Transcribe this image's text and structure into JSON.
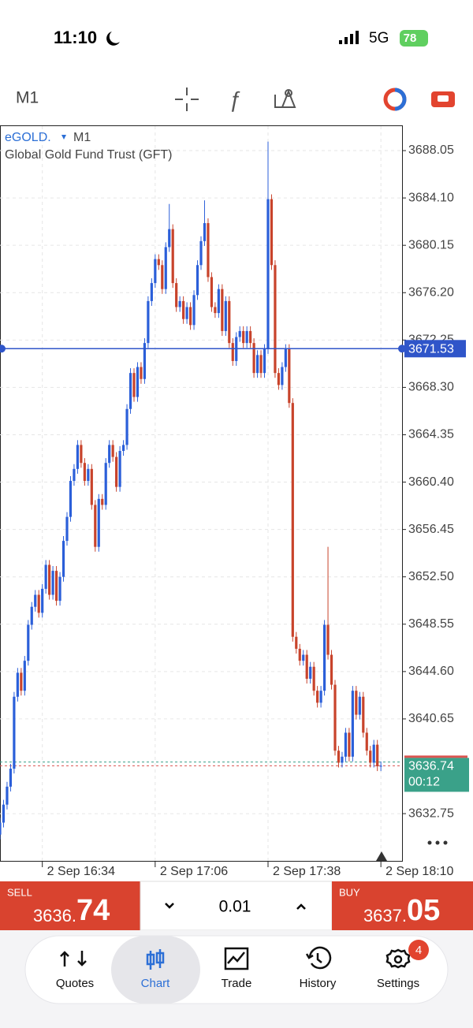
{
  "status_bar": {
    "time": "11:10",
    "network": "5G",
    "battery": "78"
  },
  "toolbar": {
    "timeframe": "M1"
  },
  "chart_data": {
    "type": "candlestick",
    "symbol": "eGOLD.",
    "timeframe": "M1",
    "subtitle": "Global Gold Fund Trust (GFT)",
    "open": [
      3631.0,
      3632.0,
      3633.5,
      3635.0,
      3636.5,
      3642.5,
      3644.5,
      3643.0,
      3645.5,
      3648.5,
      3650.0,
      3651.0,
      3649.5,
      3651.5,
      3653.5,
      3651.0,
      3653.0,
      3650.5,
      3652.5,
      3655.5,
      3657.5,
      3660.5,
      3661.5,
      3663.5,
      3662.0,
      3660.5,
      3661.5,
      3658.5,
      3655.0,
      3659.0,
      3658.5,
      3662.0,
      3663.5,
      3662.5,
      3660.0,
      3663.0,
      3663.5,
      3666.5,
      3669.5,
      3667.5,
      3670.0,
      3669.0,
      3672.0,
      3675.5,
      3677.0,
      3679.0,
      3678.5,
      3676.5,
      3680.0,
      3681.5,
      3677.0,
      3675.0,
      3675.5,
      3674.0,
      3675.0,
      3673.5,
      3676.0,
      3678.5,
      3680.5,
      3682.0,
      3677.5,
      3675.0,
      3674.5,
      3676.5,
      3673.0,
      3675.5,
      3672.0,
      3670.5,
      3672.5,
      3673.0,
      3672.0,
      3673.0,
      3672.0,
      3669.5,
      3671.0,
      3669.5,
      3671.5,
      3684.0,
      3678.5,
      3669.5,
      3668.5,
      3670.0,
      3671.5,
      3667.0,
      3647.5,
      3646.5,
      3645.5,
      3646.0,
      3644.0,
      3645.0,
      3643.0,
      3642.0,
      3643.0,
      3648.5,
      3646.0,
      3643.5,
      3638.0,
      3637.0,
      3637.5,
      3639.5,
      3637.5,
      3643.0,
      3641.0,
      3642.5,
      3639.5,
      3638.0,
      3637.0,
      3638.5,
      3636.7
    ],
    "high": [
      3632.4,
      3633.9,
      3635.4,
      3636.9,
      3642.9,
      3644.9,
      3644.9,
      3645.9,
      3648.9,
      3650.4,
      3651.4,
      3651.4,
      3651.9,
      3653.9,
      3653.9,
      3653.4,
      3653.4,
      3652.9,
      3655.9,
      3657.9,
      3660.9,
      3661.9,
      3663.9,
      3663.9,
      3662.4,
      3661.9,
      3661.9,
      3658.9,
      3659.4,
      3659.4,
      3662.4,
      3663.9,
      3663.9,
      3662.9,
      3663.4,
      3663.9,
      3666.9,
      3669.9,
      3669.9,
      3670.4,
      3670.4,
      3672.4,
      3675.9,
      3677.4,
      3679.4,
      3679.4,
      3678.9,
      3680.4,
      3683.6,
      3681.9,
      3677.4,
      3675.9,
      3675.9,
      3675.4,
      3675.4,
      3676.4,
      3678.9,
      3680.9,
      3683.9,
      3682.4,
      3677.9,
      3675.4,
      3676.9,
      3676.9,
      3675.9,
      3675.9,
      3672.4,
      3672.9,
      3673.4,
      3673.4,
      3673.4,
      3673.4,
      3672.4,
      3671.4,
      3671.4,
      3671.9,
      3688.8,
      3684.4,
      3678.9,
      3669.9,
      3670.4,
      3671.9,
      3671.9,
      3667.4,
      3647.9,
      3646.9,
      3646.4,
      3646.4,
      3645.4,
      3645.4,
      3643.4,
      3643.4,
      3648.9,
      3655.0,
      3646.4,
      3643.9,
      3638.4,
      3637.9,
      3639.9,
      3639.9,
      3643.4,
      3643.4,
      3642.9,
      3642.9,
      3639.9,
      3638.4,
      3638.9,
      3638.9,
      3637.1
    ],
    "low": [
      3630.6,
      3631.6,
      3633.1,
      3634.6,
      3636.1,
      3642.1,
      3642.6,
      3642.6,
      3645.1,
      3648.1,
      3649.6,
      3649.1,
      3649.1,
      3651.1,
      3650.6,
      3650.6,
      3650.1,
      3650.1,
      3652.1,
      3655.1,
      3657.1,
      3660.1,
      3661.1,
      3661.6,
      3660.1,
      3660.1,
      3658.1,
      3654.6,
      3654.6,
      3658.1,
      3658.1,
      3661.6,
      3662.1,
      3659.6,
      3659.6,
      3662.6,
      3663.1,
      3666.1,
      3667.1,
      3667.1,
      3668.6,
      3668.6,
      3671.6,
      3675.1,
      3676.6,
      3678.1,
      3676.1,
      3676.1,
      3679.6,
      3676.6,
      3674.6,
      3674.6,
      3673.6,
      3673.6,
      3673.1,
      3673.1,
      3675.6,
      3678.1,
      3680.1,
      3677.1,
      3674.6,
      3674.1,
      3674.1,
      3672.6,
      3672.6,
      3671.6,
      3670.1,
      3670.1,
      3672.1,
      3671.6,
      3671.6,
      3671.6,
      3669.1,
      3669.1,
      3669.1,
      3669.1,
      3671.1,
      3678.1,
      3669.1,
      3668.1,
      3668.1,
      3669.6,
      3666.6,
      3647.1,
      3646.1,
      3645.1,
      3645.1,
      3643.6,
      3643.6,
      3642.6,
      3641.6,
      3641.6,
      3642.6,
      3645.6,
      3643.1,
      3637.6,
      3636.6,
      3636.6,
      3637.1,
      3637.1,
      3637.1,
      3640.6,
      3640.6,
      3639.1,
      3637.6,
      3636.6,
      3636.6,
      3636.3,
      3636.3
    ],
    "close": [
      3632.0,
      3633.5,
      3635.0,
      3636.5,
      3642.5,
      3644.5,
      3643.0,
      3645.5,
      3648.5,
      3650.0,
      3651.0,
      3649.5,
      3651.5,
      3653.5,
      3651.0,
      3653.0,
      3650.5,
      3652.5,
      3655.5,
      3657.5,
      3660.5,
      3661.5,
      3663.5,
      3662.0,
      3660.5,
      3661.5,
      3658.5,
      3655.0,
      3659.0,
      3658.5,
      3662.0,
      3663.5,
      3662.5,
      3660.0,
      3663.0,
      3663.5,
      3666.5,
      3669.5,
      3667.5,
      3670.0,
      3669.0,
      3672.0,
      3675.5,
      3677.0,
      3679.0,
      3678.5,
      3676.5,
      3680.0,
      3681.5,
      3677.0,
      3675.0,
      3675.5,
      3674.0,
      3675.0,
      3673.5,
      3676.0,
      3678.5,
      3680.5,
      3682.0,
      3677.5,
      3675.0,
      3674.5,
      3676.5,
      3673.0,
      3675.5,
      3672.0,
      3670.5,
      3672.5,
      3673.0,
      3672.0,
      3673.0,
      3672.0,
      3669.5,
      3671.0,
      3669.5,
      3671.5,
      3684.0,
      3678.5,
      3669.5,
      3668.5,
      3670.0,
      3671.5,
      3667.0,
      3647.5,
      3646.5,
      3645.5,
      3646.0,
      3644.0,
      3645.0,
      3643.0,
      3642.0,
      3643.0,
      3648.5,
      3646.0,
      3643.5,
      3638.0,
      3637.0,
      3637.5,
      3639.5,
      3637.5,
      3643.0,
      3641.0,
      3642.5,
      3639.5,
      3638.0,
      3637.0,
      3638.5,
      3636.7,
      3636.74
    ],
    "up_color": "#2b5fd9",
    "down_color": "#c8432b",
    "xlim": [
      0,
      114
    ],
    "xticks": [
      {
        "value": 12,
        "label": "2 Sep 16:34"
      },
      {
        "value": 44,
        "label": "2 Sep 17:06"
      },
      {
        "value": 76,
        "label": "2 Sep 17:38"
      },
      {
        "value": 108,
        "label": "2 Sep 18:10"
      }
    ],
    "ylim": [
      3628.81,
      3690.09
    ],
    "yticks": [
      3688.05,
      {
        "value": 3684.1,
        "label": "3684.10"
      },
      3680.15,
      {
        "value": 3676.2,
        "label": "3676.20"
      },
      3672.25,
      {
        "value": 3668.3,
        "label": "3668.30"
      },
      3664.35,
      {
        "value": 3660.4,
        "label": "3660.40"
      },
      3656.45,
      {
        "value": 3652.5,
        "label": "3652.50"
      },
      3648.55,
      {
        "value": 3644.6,
        "label": "3644.60"
      },
      3640.65,
      3632.75
    ],
    "grid": true,
    "price_line": 3671.53,
    "price_line_color": "#2f55c9",
    "bid": 3636.74,
    "bid_color": "#d9534f",
    "ask": 3637.05,
    "ask_color": "#3aa189",
    "timer": "00:12"
  },
  "trade": {
    "sell_label": "SELL",
    "sell_price_main": "3636.",
    "sell_price_tail": "74",
    "volume": "0.01",
    "buy_label": "BUY",
    "buy_price_main": "3637.",
    "buy_price_tail": "05"
  },
  "nav": {
    "items": [
      "Quotes",
      "Chart",
      "Trade",
      "History",
      "Settings"
    ],
    "active": 1,
    "badge": "4"
  }
}
